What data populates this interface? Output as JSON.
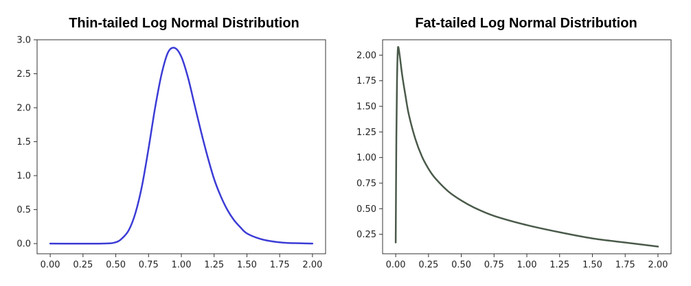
{
  "chart_data": [
    {
      "type": "line",
      "title": "Thin-tailed Log Normal Distribution",
      "xlabel": "",
      "ylabel": "",
      "xlim": [
        0,
        2
      ],
      "ylim": [
        0,
        3
      ],
      "x_ticks": [
        "0.00",
        "0.25",
        "0.50",
        "0.75",
        "1.00",
        "1.25",
        "1.50",
        "1.75",
        "2.00"
      ],
      "y_ticks": [
        "0.0",
        "0.5",
        "1.0",
        "1.5",
        "2.0",
        "2.5",
        "3.0"
      ],
      "grid": false,
      "series": [
        {
          "color": "#3b3bd6",
          "x": [
            0.0,
            0.4,
            0.5,
            0.55,
            0.6,
            0.65,
            0.7,
            0.75,
            0.8,
            0.85,
            0.9,
            0.95,
            1.0,
            1.05,
            1.1,
            1.15,
            1.2,
            1.25,
            1.3,
            1.35,
            1.4,
            1.45,
            1.5,
            1.6,
            1.7,
            1.8,
            1.9,
            2.0
          ],
          "y": [
            0.0,
            0.0,
            0.02,
            0.08,
            0.2,
            0.45,
            0.85,
            1.4,
            2.0,
            2.5,
            2.82,
            2.88,
            2.75,
            2.45,
            2.05,
            1.65,
            1.28,
            0.95,
            0.7,
            0.5,
            0.35,
            0.24,
            0.15,
            0.07,
            0.03,
            0.01,
            0.005,
            0.0
          ]
        }
      ]
    },
    {
      "type": "line",
      "title": "Fat-tailed Log Normal Distribution",
      "xlabel": "",
      "ylabel": "",
      "xlim": [
        0,
        2
      ],
      "ylim": [
        0.15,
        2.1
      ],
      "x_ticks": [
        "0.00",
        "0.25",
        "0.50",
        "0.75",
        "1.00",
        "1.25",
        "1.50",
        "1.75",
        "2.00"
      ],
      "y_ticks": [
        "0.25",
        "0.50",
        "0.75",
        "1.00",
        "1.25",
        "1.50",
        "1.75",
        "2.00"
      ],
      "grid": false,
      "series": [
        {
          "color": "#4a5a4a",
          "x": [
            0.0,
            0.005,
            0.01,
            0.015,
            0.02,
            0.03,
            0.05,
            0.075,
            0.1,
            0.15,
            0.2,
            0.25,
            0.3,
            0.4,
            0.5,
            0.6,
            0.75,
            1.0,
            1.25,
            1.5,
            1.75,
            2.0
          ],
          "y": [
            0.17,
            1.2,
            1.75,
            2.02,
            2.08,
            2.0,
            1.8,
            1.6,
            1.42,
            1.18,
            1.01,
            0.89,
            0.8,
            0.67,
            0.58,
            0.51,
            0.43,
            0.34,
            0.27,
            0.21,
            0.17,
            0.13
          ]
        }
      ]
    }
  ]
}
